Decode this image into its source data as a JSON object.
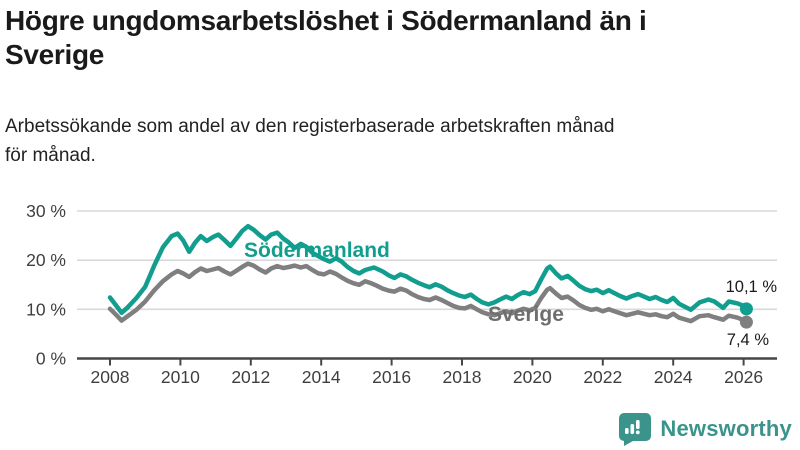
{
  "header": {
    "title_lines": [
      "Högre ungdomsarbetslöshet i Södermanland än i",
      "Sverige"
    ],
    "subtitle_lines": [
      "Arbetssökande som andel av den registerbaserade arbetskraften månad",
      "för månad."
    ]
  },
  "footer": {
    "brand": "Newsworthy",
    "logo_icon": "bar-chart-speech-bubble-icon"
  },
  "colors": {
    "sodermanland": "#119e8f",
    "sverige": "#7f7f7f",
    "series_label_gray": "#6e6e6e",
    "value_label_text": "#1a1a1a",
    "axis_line": "#474747",
    "tick_text": "#3f3f3f",
    "gridline": "#d9d9d9",
    "brand_teal": "#3a948c",
    "background": "#ffffff"
  },
  "chart_data": {
    "type": "line",
    "title": "Högre ungdomsarbetslöshet i Södermanland än i Sverige",
    "subtitle": "Arbetssökande som andel av den registerbaserade arbetskraften månad för månad.",
    "xlabel": "",
    "ylabel": "",
    "grid": "horizontal",
    "legend_position": "inline-labels",
    "x_axis": {
      "tick_years": [
        2008,
        2010,
        2012,
        2014,
        2016,
        2018,
        2020,
        2022,
        2024,
        2026
      ],
      "range": [
        2007.05,
        2026.95
      ]
    },
    "y_axis": {
      "tick_values": [
        0,
        10,
        20,
        30
      ],
      "tick_labels": [
        "0 %",
        "10 %",
        "20 %",
        "30 %"
      ],
      "range": [
        0,
        31.5
      ],
      "unit": "%"
    },
    "series": [
      {
        "name": "Södermanland",
        "end_label": "10,1 %",
        "end_value": 10.1,
        "points": [
          [
            2008.0,
            12.4
          ],
          [
            2008.17,
            10.8
          ],
          [
            2008.33,
            9.3
          ],
          [
            2008.5,
            10.4
          ],
          [
            2008.75,
            12.3
          ],
          [
            2009.0,
            14.6
          ],
          [
            2009.25,
            18.8
          ],
          [
            2009.5,
            22.6
          ],
          [
            2009.75,
            24.9
          ],
          [
            2009.92,
            25.4
          ],
          [
            2010.08,
            24.0
          ],
          [
            2010.25,
            21.7
          ],
          [
            2010.42,
            23.6
          ],
          [
            2010.58,
            24.9
          ],
          [
            2010.75,
            23.9
          ],
          [
            2010.92,
            24.7
          ],
          [
            2011.08,
            25.2
          ],
          [
            2011.25,
            24.1
          ],
          [
            2011.42,
            22.9
          ],
          [
            2011.58,
            24.3
          ],
          [
            2011.75,
            25.9
          ],
          [
            2011.92,
            26.9
          ],
          [
            2012.08,
            26.2
          ],
          [
            2012.25,
            25.1
          ],
          [
            2012.42,
            24.2
          ],
          [
            2012.58,
            25.2
          ],
          [
            2012.75,
            25.6
          ],
          [
            2012.92,
            24.4
          ],
          [
            2013.08,
            23.6
          ],
          [
            2013.25,
            22.5
          ],
          [
            2013.42,
            23.3
          ],
          [
            2013.58,
            22.7
          ],
          [
            2013.75,
            21.5
          ],
          [
            2013.92,
            20.8
          ],
          [
            2014.08,
            20.2
          ],
          [
            2014.25,
            19.7
          ],
          [
            2014.42,
            20.4
          ],
          [
            2014.58,
            19.7
          ],
          [
            2014.75,
            18.6
          ],
          [
            2014.92,
            17.8
          ],
          [
            2015.08,
            17.3
          ],
          [
            2015.25,
            18.0
          ],
          [
            2015.5,
            18.5
          ],
          [
            2015.75,
            17.7
          ],
          [
            2015.92,
            16.9
          ],
          [
            2016.08,
            16.4
          ],
          [
            2016.25,
            17.1
          ],
          [
            2016.42,
            16.7
          ],
          [
            2016.58,
            16.0
          ],
          [
            2016.75,
            15.4
          ],
          [
            2016.92,
            14.9
          ],
          [
            2017.08,
            14.5
          ],
          [
            2017.25,
            15.1
          ],
          [
            2017.42,
            14.6
          ],
          [
            2017.58,
            13.9
          ],
          [
            2017.75,
            13.3
          ],
          [
            2017.92,
            12.8
          ],
          [
            2018.08,
            12.5
          ],
          [
            2018.25,
            13.0
          ],
          [
            2018.42,
            12.1
          ],
          [
            2018.58,
            11.4
          ],
          [
            2018.75,
            11.0
          ],
          [
            2018.92,
            11.4
          ],
          [
            2019.08,
            12.0
          ],
          [
            2019.25,
            12.6
          ],
          [
            2019.42,
            12.1
          ],
          [
            2019.58,
            12.9
          ],
          [
            2019.75,
            13.5
          ],
          [
            2019.92,
            13.1
          ],
          [
            2020.08,
            13.7
          ],
          [
            2020.25,
            16.1
          ],
          [
            2020.42,
            18.3
          ],
          [
            2020.5,
            18.7
          ],
          [
            2020.67,
            17.3
          ],
          [
            2020.83,
            16.3
          ],
          [
            2021.0,
            16.8
          ],
          [
            2021.17,
            15.8
          ],
          [
            2021.33,
            14.8
          ],
          [
            2021.5,
            14.1
          ],
          [
            2021.67,
            13.7
          ],
          [
            2021.83,
            14.0
          ],
          [
            2022.0,
            13.3
          ],
          [
            2022.17,
            13.9
          ],
          [
            2022.33,
            13.3
          ],
          [
            2022.5,
            12.7
          ],
          [
            2022.67,
            12.2
          ],
          [
            2022.83,
            12.7
          ],
          [
            2023.0,
            13.1
          ],
          [
            2023.17,
            12.6
          ],
          [
            2023.33,
            12.1
          ],
          [
            2023.5,
            12.5
          ],
          [
            2023.67,
            11.9
          ],
          [
            2023.83,
            11.5
          ],
          [
            2024.0,
            12.3
          ],
          [
            2024.17,
            11.1
          ],
          [
            2024.5,
            9.9
          ],
          [
            2024.75,
            11.4
          ],
          [
            2025.0,
            12.0
          ],
          [
            2025.17,
            11.6
          ],
          [
            2025.42,
            10.3
          ],
          [
            2025.58,
            11.6
          ],
          [
            2025.83,
            11.2
          ],
          [
            2026.0,
            10.7
          ],
          [
            2026.08,
            10.1
          ]
        ]
      },
      {
        "name": "Sverige",
        "end_label": "7,4 %",
        "end_value": 7.4,
        "points": [
          [
            2008.0,
            10.1
          ],
          [
            2008.17,
            8.9
          ],
          [
            2008.33,
            7.7
          ],
          [
            2008.5,
            8.6
          ],
          [
            2008.75,
            9.9
          ],
          [
            2009.0,
            11.6
          ],
          [
            2009.25,
            13.8
          ],
          [
            2009.5,
            15.7
          ],
          [
            2009.75,
            17.1
          ],
          [
            2009.92,
            17.8
          ],
          [
            2010.08,
            17.3
          ],
          [
            2010.25,
            16.6
          ],
          [
            2010.42,
            17.6
          ],
          [
            2010.58,
            18.3
          ],
          [
            2010.75,
            17.8
          ],
          [
            2010.92,
            18.1
          ],
          [
            2011.08,
            18.4
          ],
          [
            2011.25,
            17.7
          ],
          [
            2011.42,
            17.1
          ],
          [
            2011.58,
            17.8
          ],
          [
            2011.75,
            18.6
          ],
          [
            2011.92,
            19.3
          ],
          [
            2012.08,
            18.9
          ],
          [
            2012.25,
            18.1
          ],
          [
            2012.42,
            17.5
          ],
          [
            2012.58,
            18.3
          ],
          [
            2012.75,
            18.8
          ],
          [
            2012.92,
            18.4
          ],
          [
            2013.08,
            18.6
          ],
          [
            2013.25,
            18.9
          ],
          [
            2013.42,
            18.5
          ],
          [
            2013.58,
            18.8
          ],
          [
            2013.75,
            18.0
          ],
          [
            2013.92,
            17.3
          ],
          [
            2014.08,
            17.1
          ],
          [
            2014.25,
            17.7
          ],
          [
            2014.42,
            17.2
          ],
          [
            2014.58,
            16.5
          ],
          [
            2014.75,
            15.8
          ],
          [
            2014.92,
            15.3
          ],
          [
            2015.08,
            15.0
          ],
          [
            2015.25,
            15.7
          ],
          [
            2015.42,
            15.3
          ],
          [
            2015.58,
            14.8
          ],
          [
            2015.75,
            14.2
          ],
          [
            2015.92,
            13.8
          ],
          [
            2016.08,
            13.6
          ],
          [
            2016.25,
            14.2
          ],
          [
            2016.42,
            13.8
          ],
          [
            2016.58,
            13.1
          ],
          [
            2016.75,
            12.5
          ],
          [
            2016.92,
            12.1
          ],
          [
            2017.08,
            11.9
          ],
          [
            2017.25,
            12.4
          ],
          [
            2017.42,
            11.9
          ],
          [
            2017.58,
            11.3
          ],
          [
            2017.75,
            10.7
          ],
          [
            2017.92,
            10.3
          ],
          [
            2018.08,
            10.2
          ],
          [
            2018.25,
            10.7
          ],
          [
            2018.42,
            10.0
          ],
          [
            2018.58,
            9.4
          ],
          [
            2018.75,
            9.0
          ],
          [
            2018.92,
            8.8
          ],
          [
            2019.08,
            9.2
          ],
          [
            2019.25,
            9.6
          ],
          [
            2019.42,
            9.2
          ],
          [
            2019.58,
            9.7
          ],
          [
            2019.75,
            10.1
          ],
          [
            2019.92,
            9.8
          ],
          [
            2020.08,
            10.3
          ],
          [
            2020.25,
            12.3
          ],
          [
            2020.42,
            14.0
          ],
          [
            2020.5,
            14.3
          ],
          [
            2020.67,
            13.2
          ],
          [
            2020.83,
            12.3
          ],
          [
            2021.0,
            12.6
          ],
          [
            2021.17,
            11.8
          ],
          [
            2021.33,
            10.9
          ],
          [
            2021.5,
            10.3
          ],
          [
            2021.67,
            9.9
          ],
          [
            2021.83,
            10.1
          ],
          [
            2022.0,
            9.6
          ],
          [
            2022.17,
            10.0
          ],
          [
            2022.33,
            9.6
          ],
          [
            2022.5,
            9.2
          ],
          [
            2022.67,
            8.8
          ],
          [
            2022.83,
            9.1
          ],
          [
            2023.0,
            9.4
          ],
          [
            2023.17,
            9.1
          ],
          [
            2023.33,
            8.8
          ],
          [
            2023.5,
            9.0
          ],
          [
            2023.67,
            8.6
          ],
          [
            2023.83,
            8.4
          ],
          [
            2024.0,
            9.1
          ],
          [
            2024.17,
            8.3
          ],
          [
            2024.5,
            7.6
          ],
          [
            2024.75,
            8.6
          ],
          [
            2025.0,
            8.8
          ],
          [
            2025.17,
            8.4
          ],
          [
            2025.42,
            7.9
          ],
          [
            2025.58,
            8.7
          ],
          [
            2025.83,
            8.3
          ],
          [
            2026.0,
            7.8
          ],
          [
            2026.08,
            7.4
          ]
        ]
      }
    ]
  }
}
